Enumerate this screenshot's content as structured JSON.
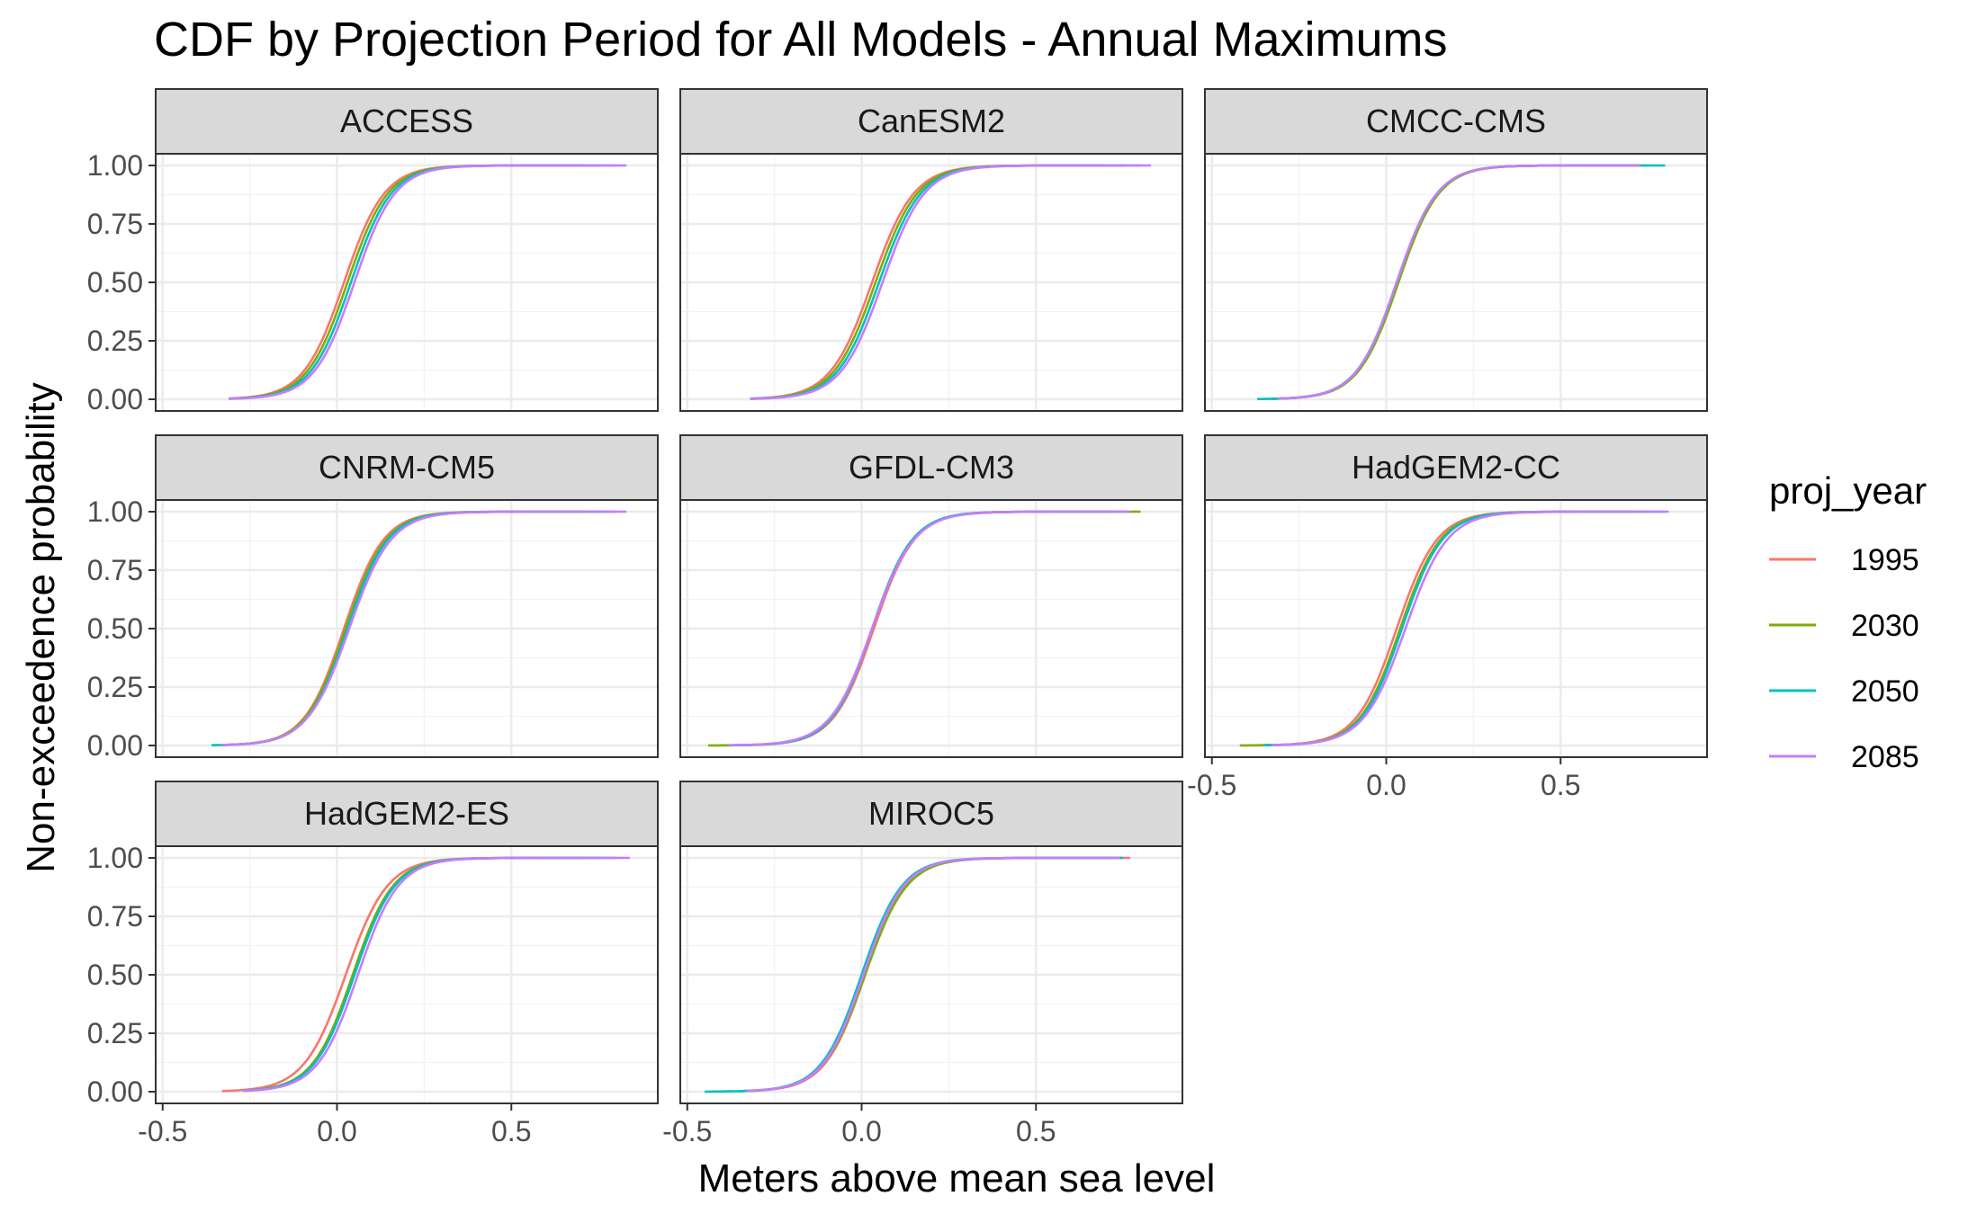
{
  "chart_data": {
    "type": "line",
    "title": "CDF by Projection Period for All Models - Annual Maximums",
    "xlabel": "Meters above mean sea level",
    "ylabel": "Non-exceedence probability",
    "xlim": [
      -0.52,
      0.92
    ],
    "ylim": [
      -0.05,
      1.05
    ],
    "x_ticks": [
      "-0.5",
      "0.0",
      "0.5"
    ],
    "x_tick_values": [
      -0.5,
      0.0,
      0.5
    ],
    "y_ticks": [
      "0.00",
      "0.25",
      "0.50",
      "0.75",
      "1.00"
    ],
    "y_tick_values": [
      0,
      0.25,
      0.5,
      0.75,
      1.0
    ],
    "grid": true,
    "legend": {
      "title": "proj_year",
      "position": "right",
      "entries": [
        "1995",
        "2030",
        "2050",
        "2085"
      ],
      "colors": [
        "#F8766D",
        "#7CAE00",
        "#00BFC4",
        "#C77CFF"
      ]
    },
    "panels": [
      {
        "name": "ACCESS",
        "series": [
          {
            "name": "1995",
            "loc": 0.02,
            "scale": 0.058,
            "xmin": -0.31,
            "xmax": 0.7
          },
          {
            "name": "2030",
            "loc": 0.03,
            "scale": 0.058,
            "xmin": -0.31,
            "xmax": 0.75
          },
          {
            "name": "2050",
            "loc": 0.04,
            "scale": 0.058,
            "xmin": -0.31,
            "xmax": 0.8
          },
          {
            "name": "2085",
            "loc": 0.05,
            "scale": 0.058,
            "xmin": -0.31,
            "xmax": 0.83
          }
        ]
      },
      {
        "name": "CanESM2",
        "series": [
          {
            "name": "1995",
            "loc": 0.03,
            "scale": 0.06,
            "xmin": -0.32,
            "xmax": 0.7
          },
          {
            "name": "2030",
            "loc": 0.04,
            "scale": 0.06,
            "xmin": -0.32,
            "xmax": 0.75
          },
          {
            "name": "2050",
            "loc": 0.05,
            "scale": 0.06,
            "xmin": -0.32,
            "xmax": 0.8
          },
          {
            "name": "2085",
            "loc": 0.06,
            "scale": 0.06,
            "xmin": -0.32,
            "xmax": 0.83
          }
        ]
      },
      {
        "name": "CMCC-CMS",
        "series": [
          {
            "name": "1995",
            "loc": 0.03,
            "scale": 0.058,
            "xmin": -0.33,
            "xmax": 0.72
          },
          {
            "name": "2030",
            "loc": 0.035,
            "scale": 0.058,
            "xmin": -0.33,
            "xmax": 0.75
          },
          {
            "name": "2050",
            "loc": 0.03,
            "scale": 0.058,
            "xmin": -0.37,
            "xmax": 0.8
          },
          {
            "name": "2085",
            "loc": 0.03,
            "scale": 0.058,
            "xmin": -0.31,
            "xmax": 0.73
          }
        ]
      },
      {
        "name": "CNRM-CM5",
        "series": [
          {
            "name": "1995",
            "loc": 0.02,
            "scale": 0.057,
            "xmin": -0.33,
            "xmax": 0.72
          },
          {
            "name": "2030",
            "loc": 0.025,
            "scale": 0.058,
            "xmin": -0.33,
            "xmax": 0.76
          },
          {
            "name": "2050",
            "loc": 0.03,
            "scale": 0.058,
            "xmin": -0.36,
            "xmax": 0.8
          },
          {
            "name": "2085",
            "loc": 0.035,
            "scale": 0.06,
            "xmin": -0.33,
            "xmax": 0.83
          }
        ]
      },
      {
        "name": "GFDL-CM3",
        "series": [
          {
            "name": "1995",
            "loc": 0.035,
            "scale": 0.058,
            "xmin": -0.38,
            "xmax": 0.72
          },
          {
            "name": "2030",
            "loc": 0.03,
            "scale": 0.058,
            "xmin": -0.44,
            "xmax": 0.8
          },
          {
            "name": "2050",
            "loc": 0.03,
            "scale": 0.058,
            "xmin": -0.38,
            "xmax": 0.75
          },
          {
            "name": "2085",
            "loc": 0.03,
            "scale": 0.06,
            "xmin": -0.38,
            "xmax": 0.77
          }
        ]
      },
      {
        "name": "HadGEM2-CC",
        "series": [
          {
            "name": "1995",
            "loc": 0.03,
            "scale": 0.058,
            "xmin": -0.35,
            "xmax": 0.72
          },
          {
            "name": "2030",
            "loc": 0.04,
            "scale": 0.058,
            "xmin": -0.42,
            "xmax": 0.75
          },
          {
            "name": "2050",
            "loc": 0.045,
            "scale": 0.058,
            "xmin": -0.35,
            "xmax": 0.8
          },
          {
            "name": "2085",
            "loc": 0.055,
            "scale": 0.06,
            "xmin": -0.33,
            "xmax": 0.81
          }
        ]
      },
      {
        "name": "HadGEM2-ES",
        "series": [
          {
            "name": "1995",
            "loc": 0.025,
            "scale": 0.06,
            "xmin": -0.33,
            "xmax": 0.72
          },
          {
            "name": "2030",
            "loc": 0.045,
            "scale": 0.058,
            "xmin": -0.27,
            "xmax": 0.75
          },
          {
            "name": "2050",
            "loc": 0.05,
            "scale": 0.058,
            "xmin": -0.27,
            "xmax": 0.8
          },
          {
            "name": "2085",
            "loc": 0.06,
            "scale": 0.058,
            "xmin": -0.27,
            "xmax": 0.84
          }
        ]
      },
      {
        "name": "MIROC5",
        "series": [
          {
            "name": "1995",
            "loc": 0.01,
            "scale": 0.058,
            "xmin": -0.35,
            "xmax": 0.77
          },
          {
            "name": "2030",
            "loc": 0.01,
            "scale": 0.06,
            "xmin": -0.35,
            "xmax": 0.72
          },
          {
            "name": "2050",
            "loc": 0.0,
            "scale": 0.058,
            "xmin": -0.45,
            "xmax": 0.75
          },
          {
            "name": "2085",
            "loc": 0.005,
            "scale": 0.058,
            "xmin": -0.33,
            "xmax": 0.74
          }
        ]
      }
    ]
  }
}
